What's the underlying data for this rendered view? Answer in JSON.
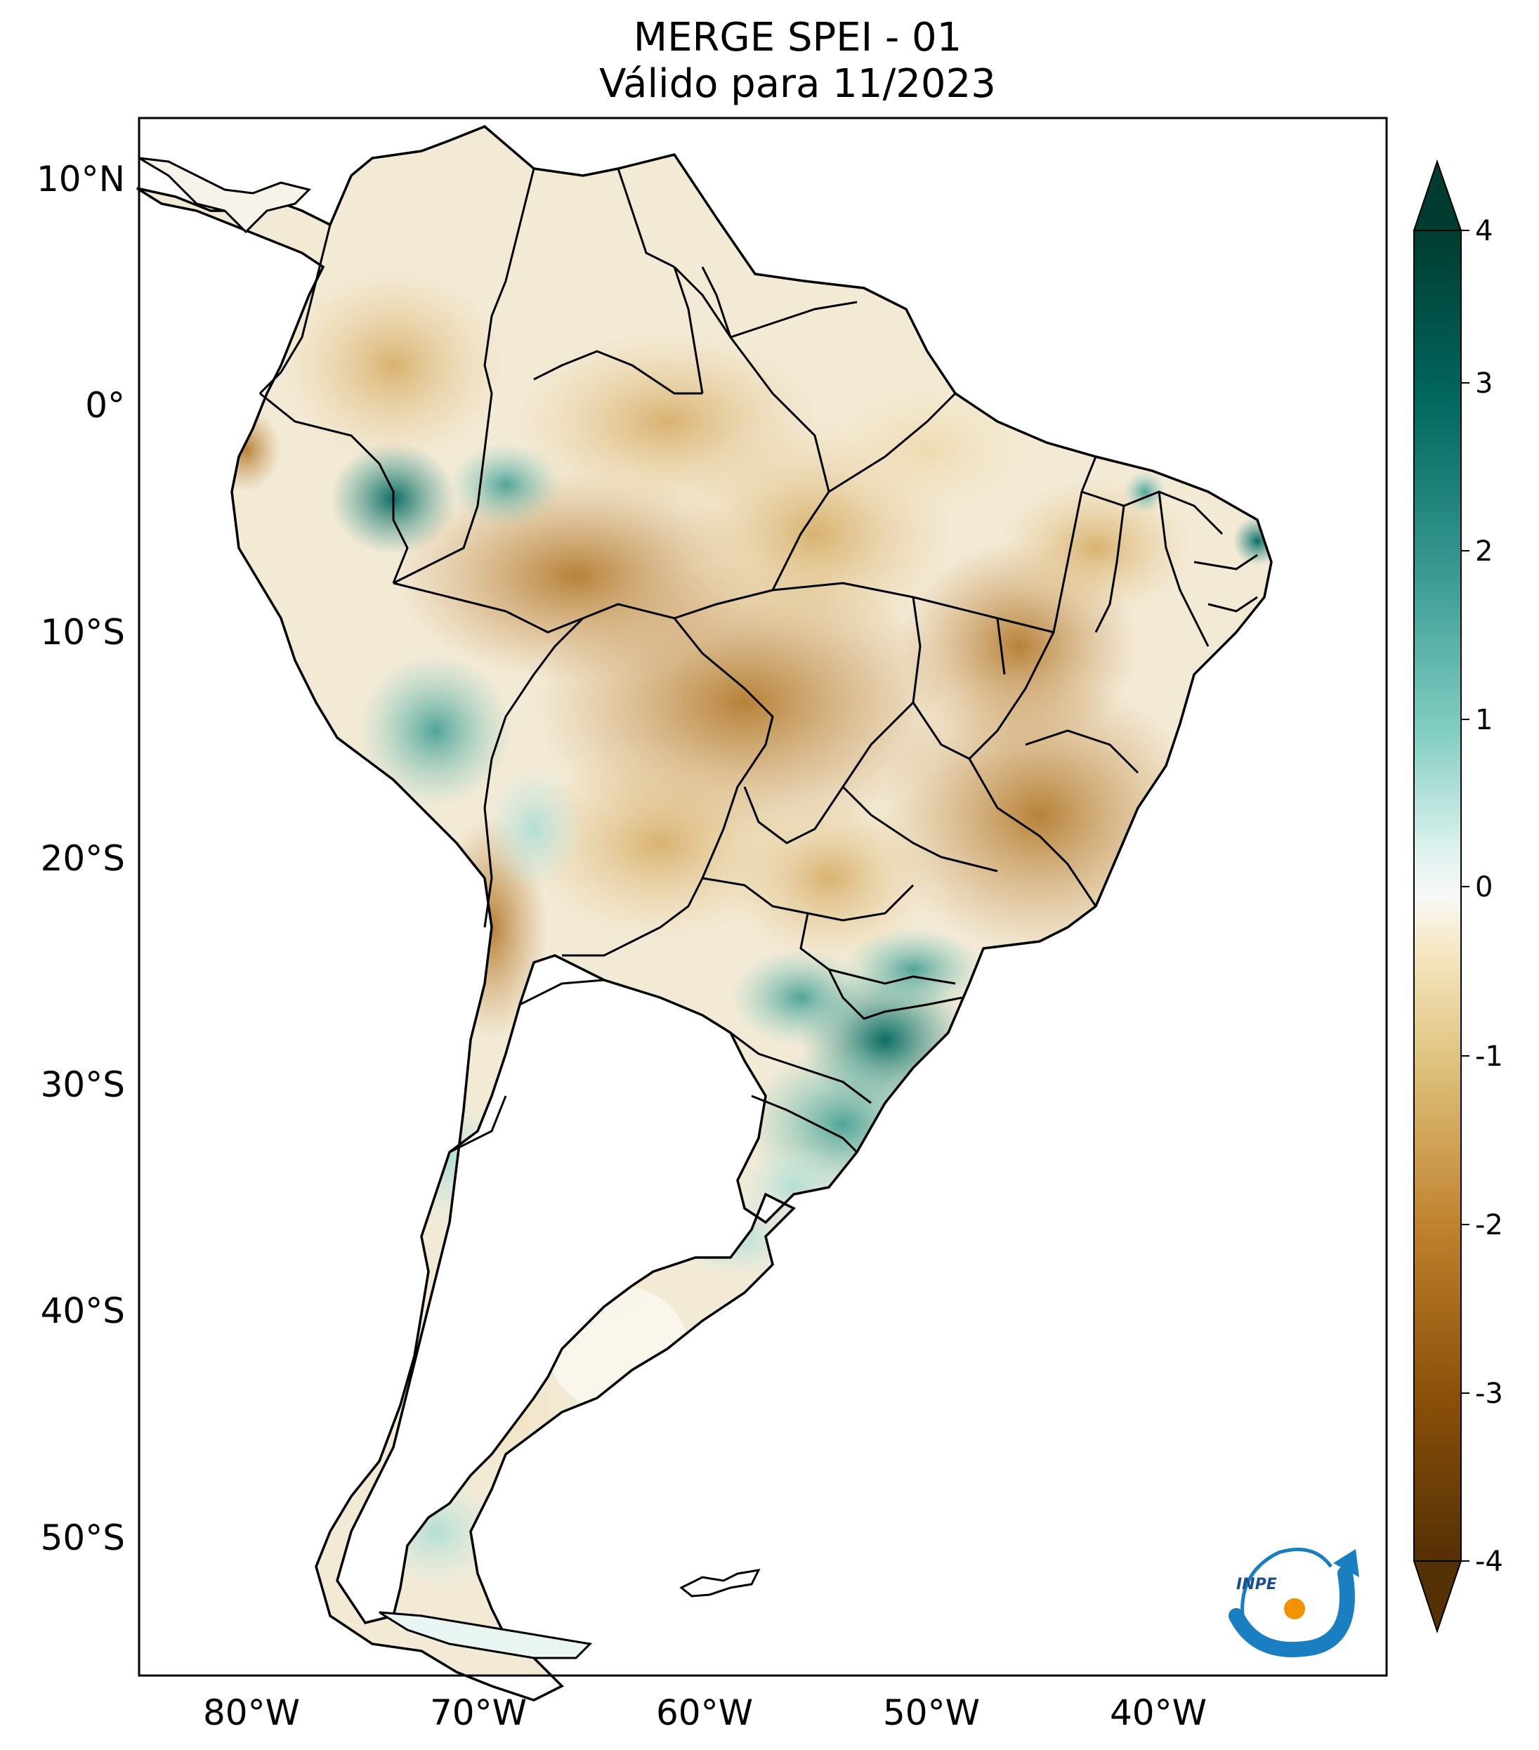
{
  "title": {
    "line1": "MERGE   SPEI - 01",
    "line2": "Válido para 11/2023"
  },
  "map": {
    "type": "choropleth-map",
    "region": "South America",
    "lon_range": [
      -85,
      -30
    ],
    "lat_range": [
      -56,
      13
    ],
    "lat_ticks": [
      {
        "value": 10,
        "label": "10°N"
      },
      {
        "value": 0,
        "label": "0°"
      },
      {
        "value": -10,
        "label": "10°S"
      },
      {
        "value": -20,
        "label": "20°S"
      },
      {
        "value": -30,
        "label": "30°S"
      },
      {
        "value": -40,
        "label": "40°S"
      },
      {
        "value": -50,
        "label": "50°S"
      }
    ],
    "lon_ticks": [
      {
        "value": -80,
        "label": "80°W"
      },
      {
        "value": -70,
        "label": "70°W"
      },
      {
        "value": -60,
        "label": "60°W"
      },
      {
        "value": -50,
        "label": "50°W"
      },
      {
        "value": -40,
        "label": "40°W"
      }
    ],
    "wet_regions": [
      "Rio Grande do Sul",
      "Santa Catarina",
      "Uruguay",
      "northeastern Argentina",
      "Paraguay east",
      "western Amazon",
      "Peru",
      "Rio Grande do Norte",
      "Patagonia west"
    ],
    "dry_regions": [
      "Mato Grosso",
      "Goiás",
      "Minas Gerais",
      "Bahia",
      "Pará",
      "Amazonas",
      "Bolivia",
      "northern Chile",
      "Colombia",
      "Venezuela"
    ]
  },
  "colorbar": {
    "min": -4,
    "max": 4,
    "ticks": [
      "4",
      "3",
      "2",
      "1",
      "0",
      "-1",
      "-2",
      "-3",
      "-4"
    ],
    "colors": {
      "minus4": "#543005",
      "minus3": "#8c510a",
      "minus2": "#bf812d",
      "minus1": "#dfc27d",
      "minus05": "#f6e8c3",
      "zero": "#f5f5f5",
      "plus05": "#c7eae5",
      "plus1": "#80cdc1",
      "plus2": "#35978f",
      "plus3": "#01665e",
      "plus4": "#003c30"
    },
    "extend": "both"
  },
  "logo": {
    "text": "INPE",
    "colors": {
      "arc": "#1a7fc1",
      "dot": "#f39200"
    }
  }
}
